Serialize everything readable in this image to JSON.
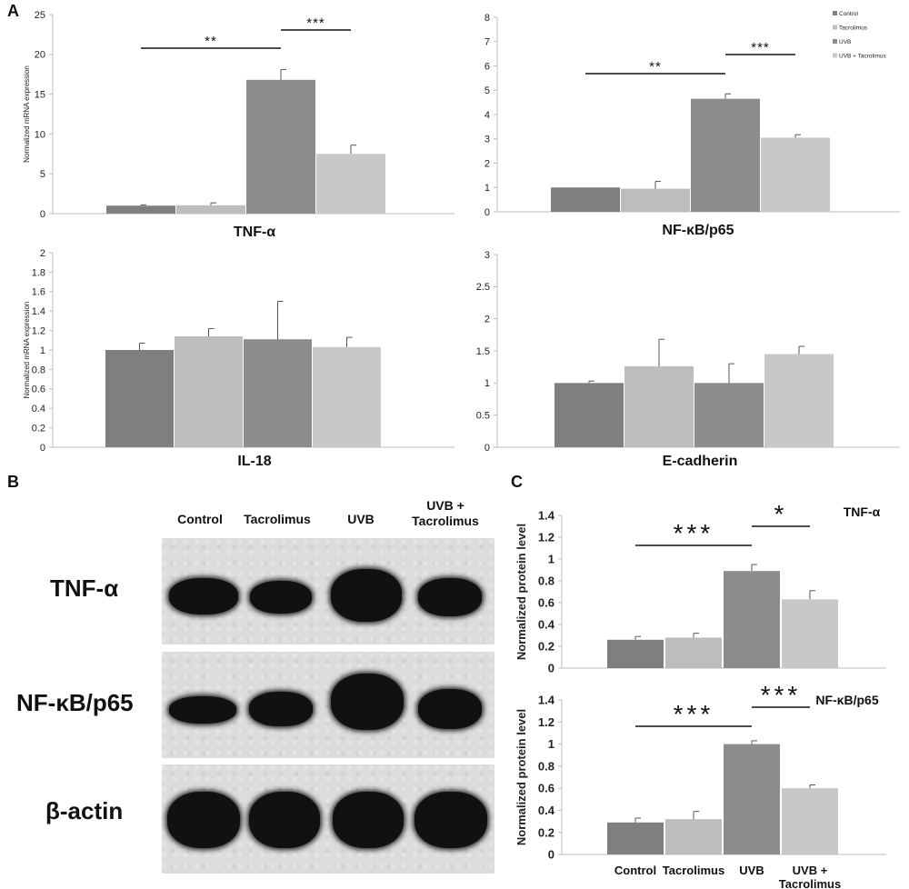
{
  "panel_labels": {
    "a": "A",
    "b": "B",
    "c": "C"
  },
  "colors": {
    "control": "#7f7f7f",
    "tacrolimus": "#bdbdbd",
    "uvb": "#8c8c8c",
    "uvb_tacrolimus": "#c8c8c8"
  },
  "legend": [
    "Control",
    "Tacrolimus",
    "UVB",
    "UVB + Tacrolimus"
  ],
  "blot": {
    "headers": [
      "Control",
      "Tacrolimus",
      "UVB",
      "UVB +\nTacrolimus"
    ],
    "rows": [
      {
        "label": "TNF-α"
      },
      {
        "label": "NF-κB/p65"
      },
      {
        "label": "β-actin"
      }
    ]
  },
  "chart_data": [
    {
      "type": "bar",
      "panel": "A",
      "title": "TNF-α",
      "ylabel": "Normalized mRNA expression",
      "categories": [
        "Control",
        "Tacrolimus",
        "UVB",
        "UVB + Tacrolimus"
      ],
      "values": [
        1.0,
        1.05,
        16.8,
        7.5
      ],
      "errors": [
        0.1,
        0.3,
        1.3,
        1.1
      ],
      "ylim": [
        0,
        25
      ],
      "yticks": [
        "0",
        "5",
        "10",
        "15",
        "20",
        "25"
      ],
      "significance": [
        {
          "from": 0,
          "to": 2,
          "label": "**"
        },
        {
          "from": 2,
          "to": 3,
          "label": "***"
        }
      ]
    },
    {
      "type": "bar",
      "panel": "A",
      "title": "NF-κB/p65",
      "ylabel": "",
      "categories": [
        "Control",
        "Tacrolimus",
        "UVB",
        "UVB + Tacrolimus"
      ],
      "values": [
        1.0,
        0.95,
        4.65,
        3.05
      ],
      "errors": [
        0.0,
        0.3,
        0.2,
        0.12
      ],
      "ylim": [
        0,
        8
      ],
      "yticks": [
        "0",
        "1",
        "2",
        "3",
        "4",
        "5",
        "6",
        "7",
        "8"
      ],
      "legend": "top-right",
      "significance": [
        {
          "from": 0,
          "to": 2,
          "label": "**"
        },
        {
          "from": 2,
          "to": 3,
          "label": "***"
        }
      ]
    },
    {
      "type": "bar",
      "panel": "A",
      "title": "IL-18",
      "ylabel": "Normalized mRNA expression",
      "categories": [
        "Control",
        "Tacrolimus",
        "UVB",
        "UVB + Tacrolimus"
      ],
      "values": [
        1.0,
        1.14,
        1.11,
        1.03
      ],
      "errors": [
        0.07,
        0.08,
        0.39,
        0.1
      ],
      "ylim": [
        0,
        2
      ],
      "yticks": [
        "0",
        "0.2",
        "0.4",
        "0.6",
        "0.8",
        "1",
        "1.2",
        "1.4",
        "1.6",
        "1.8",
        "2"
      ],
      "significance": []
    },
    {
      "type": "bar",
      "panel": "A",
      "title": "E-cadherin",
      "ylabel": "",
      "categories": [
        "Control",
        "Tacrolimus",
        "UVB",
        "UVB + Tacrolimus"
      ],
      "values": [
        1.0,
        1.26,
        1.0,
        1.45
      ],
      "errors": [
        0.03,
        0.42,
        0.3,
        0.12
      ],
      "ylim": [
        0,
        3
      ],
      "yticks": [
        "0",
        "0.5",
        "1",
        "1.5",
        "2",
        "2.5",
        "3"
      ],
      "significance": []
    },
    {
      "type": "bar",
      "panel": "C",
      "title": "TNF-α",
      "ylabel": "Normalized protein level",
      "categories": [
        "Control",
        "Tacrolimus",
        "UVB",
        "UVB + Tacrolimus"
      ],
      "values": [
        0.26,
        0.28,
        0.89,
        0.63
      ],
      "errors": [
        0.03,
        0.04,
        0.06,
        0.08
      ],
      "ylim": [
        0,
        1.4
      ],
      "yticks": [
        "0",
        "0.2",
        "0.4",
        "0.6",
        "0.8",
        "1",
        "1.2",
        "1.4"
      ],
      "significance": [
        {
          "from": 0,
          "to": 2,
          "label": "***"
        },
        {
          "from": 2,
          "to": 3,
          "label": "*"
        }
      ]
    },
    {
      "type": "bar",
      "panel": "C",
      "title": "NF-κB/p65",
      "ylabel": "Normalized protein level",
      "categories": [
        "Control",
        "Tacrolimus",
        "UVB",
        "UVB + Tacrolimus"
      ],
      "category_labels": [
        "Control",
        "Tacrolimus",
        "UVB",
        "UVB +\nTacrolimus"
      ],
      "values": [
        0.29,
        0.32,
        1.0,
        0.6
      ],
      "errors": [
        0.04,
        0.07,
        0.03,
        0.03
      ],
      "ylim": [
        0,
        1.4
      ],
      "yticks": [
        "0",
        "0.2",
        "0.4",
        "0.6",
        "0.8",
        "1",
        "1.2",
        "1.4"
      ],
      "significance": [
        {
          "from": 0,
          "to": 2,
          "label": "***"
        },
        {
          "from": 2,
          "to": 3,
          "label": "***"
        }
      ]
    }
  ]
}
